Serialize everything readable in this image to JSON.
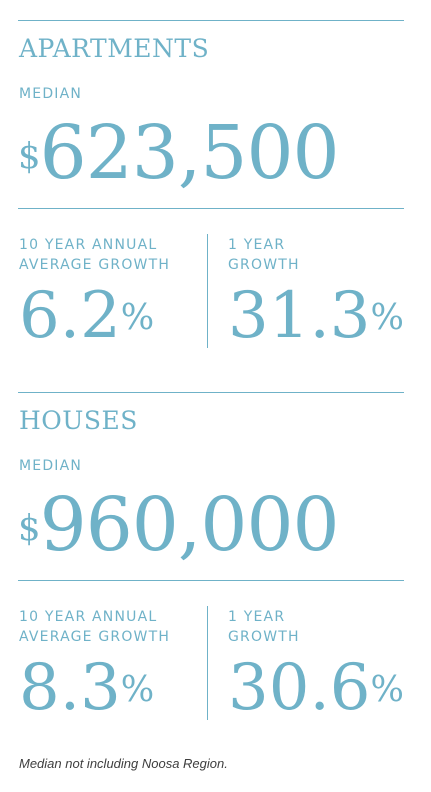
{
  "apartments": {
    "title": "APARTMENTS",
    "median_label": "MEDIAN",
    "median_currency": "$",
    "median_value": "623,500",
    "growth10_label_line1": "10 YEAR ANNUAL",
    "growth10_label_line2": "AVERAGE GROWTH",
    "growth10_value": "6.2",
    "growth10_unit": "%",
    "growth1_label_line1": "1 YEAR",
    "growth1_label_line2": "GROWTH",
    "growth1_value": "31.3",
    "growth1_unit": "%"
  },
  "houses": {
    "title": "HOUSES",
    "median_label": "MEDIAN",
    "median_currency": "$",
    "median_value": "960,000",
    "growth10_label_line1": "10 YEAR ANNUAL",
    "growth10_label_line2": "AVERAGE GROWTH",
    "growth10_value": "8.3",
    "growth10_unit": "%",
    "growth1_label_line1": "1 YEAR",
    "growth1_label_line2": "GROWTH",
    "growth1_value": "30.6",
    "growth1_unit": "%"
  },
  "footnote": "Median not including Noosa Region.",
  "colors": {
    "accent": "#6fb2c8",
    "footnote": "#3e3e3e"
  }
}
